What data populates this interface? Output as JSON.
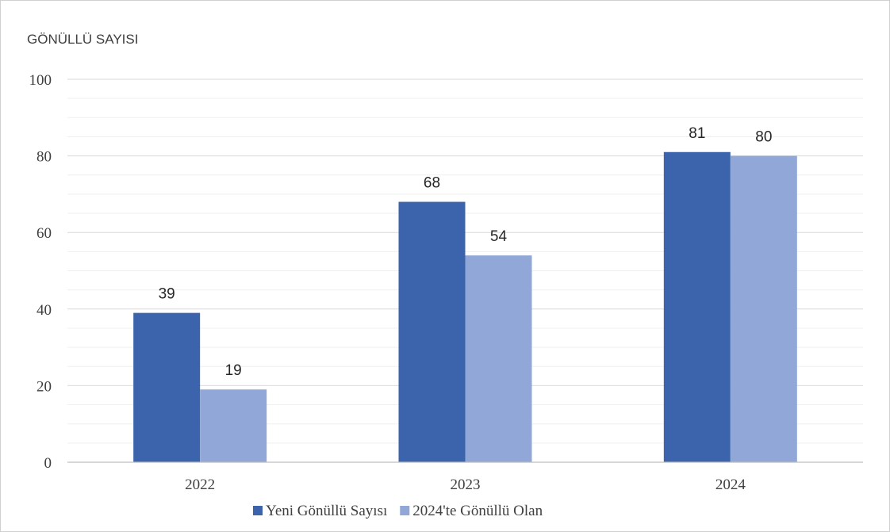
{
  "chart_data": {
    "type": "bar",
    "title": "",
    "ylabel": "GÖNÜLLÜ SAYISI",
    "xlabel": "",
    "categories": [
      "2022",
      "2023",
      "2024"
    ],
    "series": [
      {
        "name": "Yeni Gönüllü Sayısı",
        "values": [
          39,
          68,
          81
        ],
        "color": "#3C64AC"
      },
      {
        "name": "2024'te Gönüllü Olan",
        "values": [
          19,
          54,
          80
        ],
        "color": "#91A7D7"
      }
    ],
    "ylim": [
      0,
      100
    ],
    "yticks": [
      "0",
      "20",
      "40",
      "60",
      "80",
      "100"
    ],
    "grid": true,
    "legend_position": "bottom",
    "data_labels": true,
    "axis_color": "#bfbfbf",
    "major_grid_color": "#d9d9d9",
    "minor_grid_color": "#efefef"
  }
}
